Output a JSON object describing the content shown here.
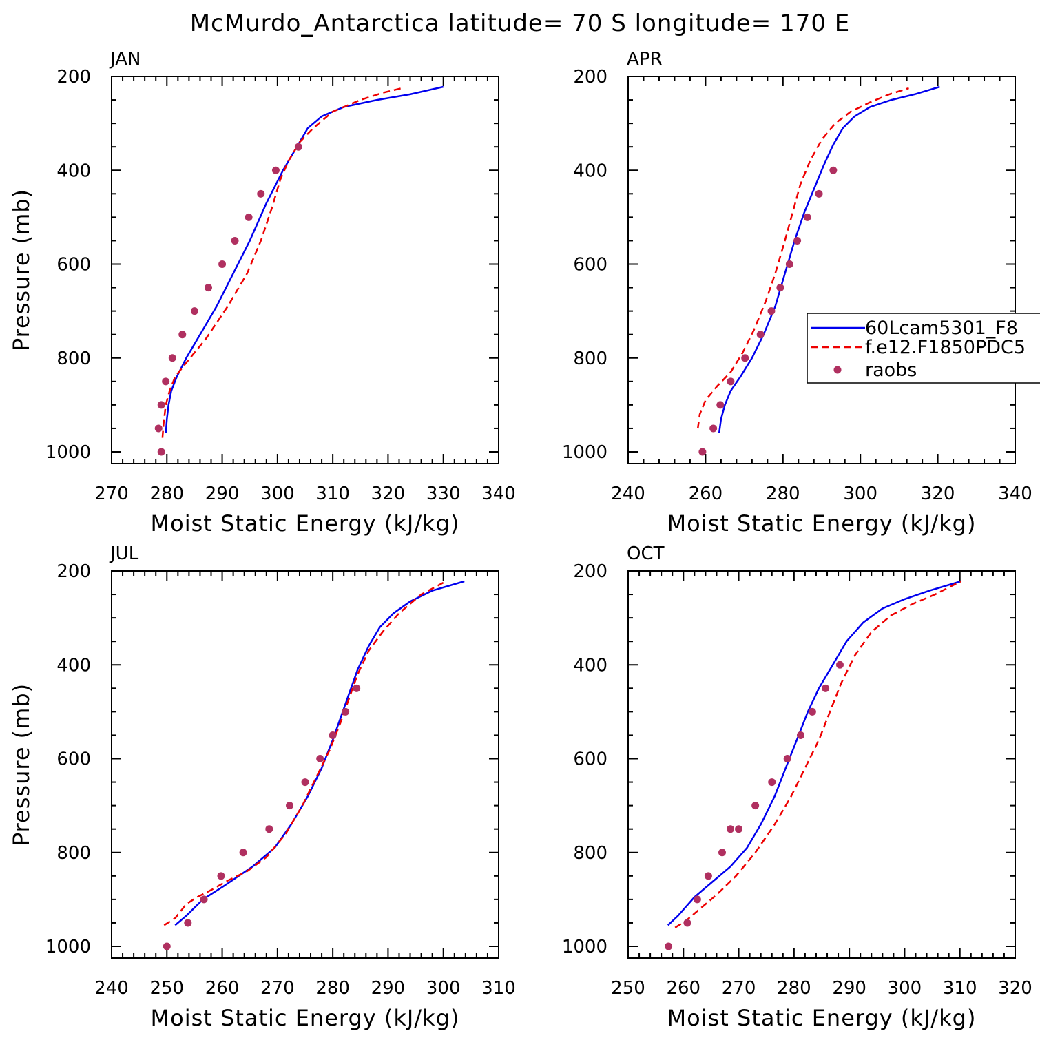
{
  "title": "McMurdo_Antarctica  latitude= 70 S longitude= 170 E",
  "colors": {
    "model1": "#0000ee",
    "model2": "#ee0000",
    "raobs": "#b03060"
  },
  "legend": {
    "items": [
      {
        "label": "60Lcam5301_F8",
        "style": "solid",
        "color": "#0000ee"
      },
      {
        "label": "f.e12.F1850PDC5",
        "style": "dashed",
        "color": "#ee0000"
      },
      {
        "label": "raobs",
        "style": "dot",
        "color": "#b03060"
      }
    ]
  },
  "chart_data": [
    {
      "panel": "JAN",
      "type": "line",
      "xlabel": "Moist Static Energy (kJ/kg)",
      "ylabel": "Pressure (mb)",
      "xlim": [
        270,
        340
      ],
      "ylim": [
        1000,
        200
      ],
      "xticks": [
        270,
        280,
        290,
        300,
        310,
        320,
        330,
        340
      ],
      "yticks": [
        200,
        400,
        600,
        800,
        1000
      ],
      "series": [
        {
          "name": "60Lcam5301_F8",
          "style": "solid",
          "x": [
            279.8,
            280.0,
            280.3,
            280.8,
            281.8,
            283.5,
            286,
            289,
            292,
            295,
            298,
            301,
            303.5,
            305.5,
            308,
            312,
            318,
            324,
            330
          ],
          "y": [
            960,
            930,
            900,
            870,
            840,
            800,
            750,
            690,
            620,
            550,
            470,
            400,
            350,
            310,
            285,
            265,
            250,
            238,
            222
          ]
        },
        {
          "name": "f.e12.F1850PDC5",
          "style": "dashed",
          "x": [
            279.2,
            279.4,
            279.8,
            280.5,
            281.5,
            283.5,
            287,
            291,
            294.5,
            297,
            299,
            300.5,
            302,
            304,
            306.5,
            310,
            315,
            319,
            322.5
          ],
          "y": [
            970,
            940,
            900,
            870,
            840,
            810,
            760,
            690,
            620,
            550,
            480,
            420,
            380,
            340,
            310,
            275,
            250,
            235,
            225
          ]
        },
        {
          "name": "raobs",
          "style": "dot",
          "x": [
            279.0,
            278.5,
            279.0,
            279.8,
            281.0,
            282.8,
            285.0,
            287.5,
            290.0,
            292.3,
            294.8,
            297.0,
            299.7,
            303.8
          ],
          "y": [
            1000,
            950,
            900,
            850,
            800,
            750,
            700,
            650,
            600,
            550,
            500,
            450,
            400,
            350
          ]
        }
      ]
    },
    {
      "panel": "APR",
      "type": "line",
      "xlabel": "Moist Static Energy (kJ/kg)",
      "ylabel": "",
      "xlim": [
        240,
        340
      ],
      "ylim": [
        1000,
        200
      ],
      "xticks": [
        240,
        260,
        280,
        300,
        320,
        340
      ],
      "yticks": [
        200,
        400,
        600,
        800,
        1000
      ],
      "series": [
        {
          "name": "60Lcam5301_F8",
          "style": "solid",
          "x": [
            263.5,
            264,
            265,
            266.5,
            269,
            272,
            275,
            278,
            280.5,
            283,
            285.5,
            288,
            290.5,
            293,
            295.5,
            298.5,
            302.5,
            308,
            314,
            320.5
          ],
          "y": [
            960,
            930,
            900,
            870,
            840,
            800,
            750,
            690,
            620,
            550,
            490,
            440,
            390,
            345,
            310,
            285,
            265,
            250,
            238,
            222
          ]
        },
        {
          "name": "f.e12.F1850PDC5",
          "style": "dashed",
          "x": [
            258,
            258.5,
            260,
            263,
            266.5,
            269.5,
            272.5,
            275.5,
            278,
            280.5,
            282.5,
            284.5,
            287,
            290,
            293.5,
            297.5,
            302.5,
            307.5,
            312.5
          ],
          "y": [
            950,
            920,
            890,
            860,
            830,
            790,
            740,
            680,
            620,
            550,
            490,
            430,
            380,
            335,
            300,
            275,
            255,
            238,
            225
          ]
        },
        {
          "name": "raobs",
          "style": "dot",
          "x": [
            259.2,
            262.0,
            263.8,
            266.5,
            270.2,
            274.2,
            277.0,
            279.3,
            281.7,
            283.7,
            286.3,
            289.3,
            293.0
          ],
          "y": [
            1000,
            950,
            900,
            850,
            800,
            750,
            700,
            650,
            600,
            550,
            500,
            450,
            400
          ]
        }
      ]
    },
    {
      "panel": "JUL",
      "type": "line",
      "xlabel": "Moist Static Energy (kJ/kg)",
      "ylabel": "Pressure (mb)",
      "xlim": [
        240,
        310
      ],
      "ylim": [
        1000,
        200
      ],
      "xticks": [
        240,
        250,
        260,
        270,
        280,
        290,
        300,
        310
      ],
      "yticks": [
        200,
        400,
        600,
        800,
        1000
      ],
      "series": [
        {
          "name": "60Lcam5301_F8",
          "style": "solid",
          "x": [
            251.5,
            253.5,
            256.5,
            260.5,
            265.5,
            269.5,
            272.5,
            275.5,
            278,
            280,
            281.5,
            283,
            284.5,
            286.5,
            288.5,
            291,
            294,
            298,
            303.8
          ],
          "y": [
            955,
            935,
            900,
            870,
            830,
            790,
            740,
            680,
            620,
            560,
            510,
            460,
            410,
            360,
            320,
            290,
            265,
            242,
            222
          ]
        },
        {
          "name": "f.e12.F1850PDC5",
          "style": "dashed",
          "x": [
            249.5,
            251.5,
            253.5,
            255.5,
            258,
            261,
            264.5,
            268,
            271.5,
            274.5,
            277,
            279.5,
            281.5,
            283,
            284.5,
            286.5,
            289,
            292,
            296,
            300
          ],
          "y": [
            955,
            940,
            910,
            895,
            880,
            860,
            840,
            810,
            760,
            700,
            640,
            580,
            520,
            470,
            420,
            370,
            330,
            290,
            250,
            225
          ]
        },
        {
          "name": "raobs",
          "style": "dot",
          "x": [
            250.0,
            253.8,
            256.7,
            259.8,
            263.8,
            268.5,
            272.2,
            275.0,
            277.7,
            280.0,
            282.3,
            284.3
          ],
          "y": [
            1000,
            950,
            900,
            850,
            800,
            750,
            700,
            650,
            600,
            550,
            500,
            450
          ]
        }
      ]
    },
    {
      "panel": "OCT",
      "type": "line",
      "xlabel": "Moist Static Energy (kJ/kg)",
      "ylabel": "",
      "xlim": [
        250,
        320
      ],
      "ylim": [
        1000,
        200
      ],
      "xticks": [
        250,
        260,
        270,
        280,
        290,
        300,
        310,
        320
      ],
      "yticks": [
        200,
        400,
        600,
        800,
        1000
      ],
      "series": [
        {
          "name": "60Lcam5301_F8",
          "style": "solid",
          "x": [
            257.2,
            259,
            260.5,
            262,
            265,
            268.5,
            271.5,
            274,
            276.5,
            278.5,
            280.5,
            282.5,
            284.5,
            287,
            289.5,
            292.5,
            296,
            300,
            304.5,
            310.2
          ],
          "y": [
            955,
            935,
            915,
            895,
            865,
            830,
            790,
            740,
            680,
            620,
            560,
            500,
            450,
            400,
            350,
            310,
            280,
            260,
            242,
            222
          ]
        },
        {
          "name": "f.e12.F1850PDC5",
          "style": "dashed",
          "x": [
            258.5,
            260.5,
            263,
            266,
            269.5,
            273,
            276.5,
            279.5,
            282,
            284.5,
            286.5,
            288.5,
            291,
            294,
            297.5,
            301.5,
            305.5,
            310.2
          ],
          "y": [
            960,
            945,
            920,
            890,
            850,
            800,
            740,
            680,
            620,
            560,
            500,
            440,
            380,
            330,
            295,
            270,
            250,
            222
          ]
        },
        {
          "name": "raobs",
          "style": "dot",
          "x": [
            257.3,
            260.7,
            262.5,
            264.5,
            267.0,
            268.5,
            270.0,
            273.0,
            276.0,
            278.8,
            281.2,
            283.3,
            285.7,
            288.3
          ],
          "y": [
            1000,
            950,
            900,
            850,
            800,
            750,
            750,
            700,
            650,
            600,
            550,
            500,
            450,
            400
          ]
        }
      ]
    }
  ]
}
